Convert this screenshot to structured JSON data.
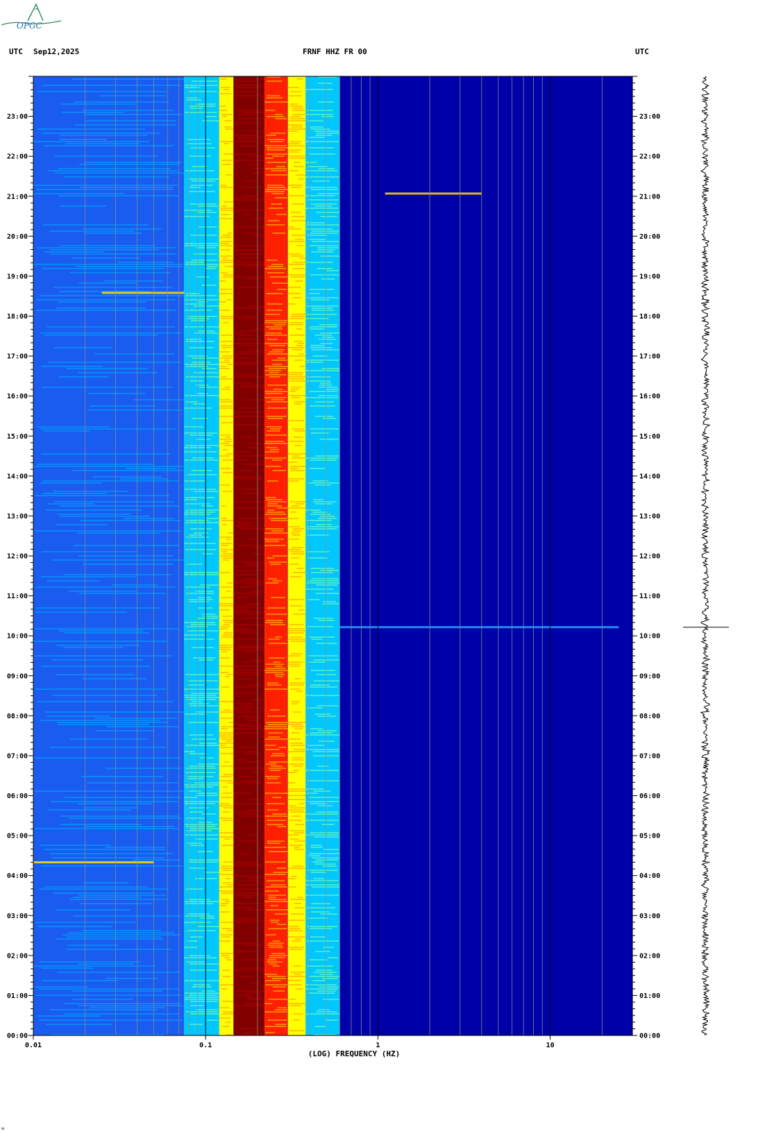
{
  "header": {
    "left_tz": "UTC",
    "date": "Sep12,2025",
    "station": "FRNF HHZ FR 00",
    "right_tz": "UTC"
  },
  "logo": {
    "text": "OPGC"
  },
  "footer": {
    "mark": "w"
  },
  "colors": {
    "background_low": "#0000a8",
    "low_mid": "#1a5cf0",
    "mid": "#00c8ff",
    "high": "#ffff00",
    "very_high": "#ff2000",
    "peak": "#800000"
  },
  "chart_data": {
    "type": "heatmap",
    "title": "FRNF HHZ FR 00",
    "xlabel": "(LOG) FREQUENCY (HZ)",
    "x_scale": "log",
    "xlim": [
      0.01,
      30
    ],
    "x_ticks": [
      {
        "value": 0.01,
        "label": "0.01"
      },
      {
        "value": 0.1,
        "label": "0.1"
      },
      {
        "value": 1,
        "label": "1"
      },
      {
        "value": 10,
        "label": "10"
      }
    ],
    "y_axis": "time (UTC), 00:00 at bottom to 24:00 at top",
    "ylim": [
      "00:00",
      "24:00"
    ],
    "y_ticks": [
      "00:00",
      "01:00",
      "02:00",
      "03:00",
      "04:00",
      "05:00",
      "06:00",
      "07:00",
      "08:00",
      "09:00",
      "10:00",
      "11:00",
      "12:00",
      "13:00",
      "14:00",
      "15:00",
      "16:00",
      "17:00",
      "18:00",
      "19:00",
      "20:00",
      "21:00",
      "22:00",
      "23:00"
    ],
    "grid": "vertical lines at each log decade subdivision",
    "spectral_bands": [
      {
        "f_min": 0.01,
        "f_max": 0.075,
        "level": "low-mid"
      },
      {
        "f_min": 0.075,
        "f_max": 0.12,
        "level": "mid"
      },
      {
        "f_min": 0.12,
        "f_max": 0.145,
        "level": "high"
      },
      {
        "f_min": 0.145,
        "f_max": 0.22,
        "level": "peak"
      },
      {
        "f_min": 0.22,
        "f_max": 0.3,
        "level": "very-high"
      },
      {
        "f_min": 0.3,
        "f_max": 0.38,
        "level": "high"
      },
      {
        "f_min": 0.38,
        "f_max": 0.6,
        "level": "mid"
      },
      {
        "f_min": 0.6,
        "f_max": 30,
        "level": "background"
      }
    ],
    "events": [
      {
        "time": "10:13",
        "f_min": 0.6,
        "f_max": 25,
        "note": "broadband transient"
      },
      {
        "time": "21:04",
        "f_min": 1.1,
        "f_max": 4,
        "note": "weak transient"
      },
      {
        "time": "18:35",
        "f_min": 0.025,
        "f_max": 0.075,
        "note": "low-frequency burst"
      },
      {
        "time": "04:20",
        "f_min": 0.01,
        "f_max": 0.05,
        "note": "low-frequency burst"
      }
    ],
    "trace_marker_time": "10:13"
  }
}
